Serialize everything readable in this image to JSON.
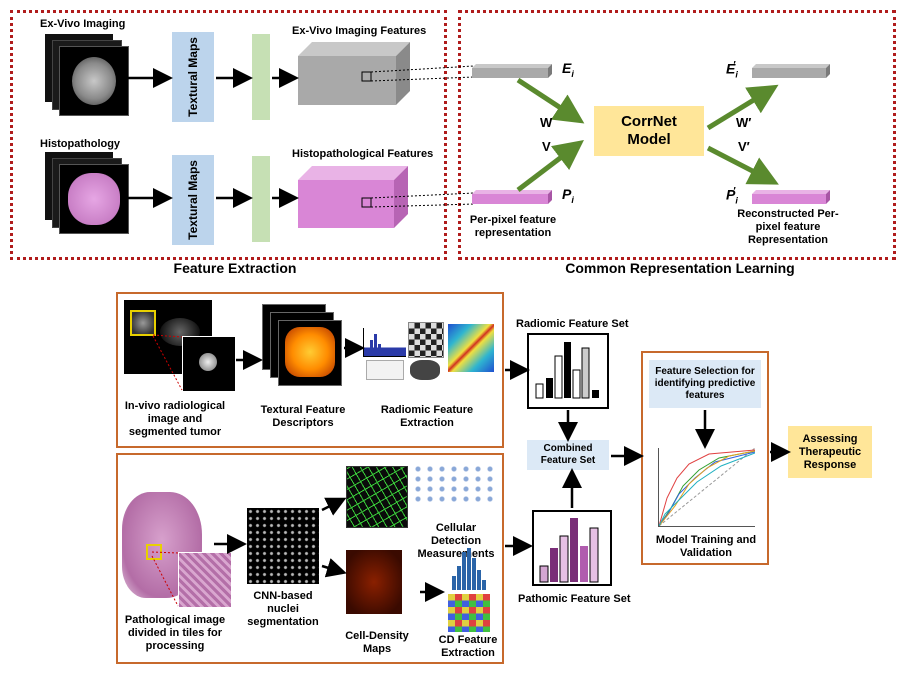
{
  "top": {
    "left_panel_caption": "Feature Extraction",
    "right_panel_caption": "Common Representation Learning",
    "exvivo_label": "Ex-Vivo Imaging",
    "histo_label": "Histopathology",
    "textural_maps_label": "Textural Maps",
    "exvivo_features_label": "Ex-Vivo Imaging Features",
    "histo_features_label": "Histopathological Features",
    "E_label": "E",
    "P_label": "P",
    "E_prime_label": "E",
    "P_prime_label": "P",
    "subscript_i": "i",
    "prime_mark": "′",
    "W_label": "W",
    "V_label": "V",
    "W_prime_label": "W′",
    "V_prime_label": "V′",
    "corrnet_label": "CorrNet Model",
    "per_pixel_label": "Per-pixel feature representation",
    "reconstructed_label": "Reconstructed Per-pixel feature Representation"
  },
  "bottom": {
    "invivo_label": "In-vivo radiological image and segmented tumor",
    "textural_descriptors_label": "Textural  Feature Descriptors",
    "radiomic_extraction_label": "Radiomic Feature Extraction",
    "radiomic_set_label": "Radiomic Feature Set",
    "combined_label": "Combined Feature Set",
    "feature_selection_label": "Feature Selection for identifying predictive features",
    "model_training_label": "Model Training and Validation",
    "assessing_label": "Assessing Therapeutic Response",
    "pathological_label": "Pathological image divided in tiles for processing",
    "cnn_label": "CNN-based nuclei segmentation",
    "cellular_detection_label": "Cellular Detection Measurements",
    "cell_density_label": "Cell-Density Maps",
    "cd_extraction_label": "CD Feature Extraction",
    "pathomic_set_label": "Pathomic Feature Set"
  },
  "colors": {
    "dotted_border": "#b01c1c",
    "orange_border": "#c7692c",
    "arrow_green": "#5a8a2e",
    "histo_pink": "#d986d6",
    "gray_feature": "#a9a9a9",
    "textural_blue": "#bcd4ec",
    "green_bar": "#c6e0b4",
    "corrnet_yellow": "#ffe699"
  }
}
